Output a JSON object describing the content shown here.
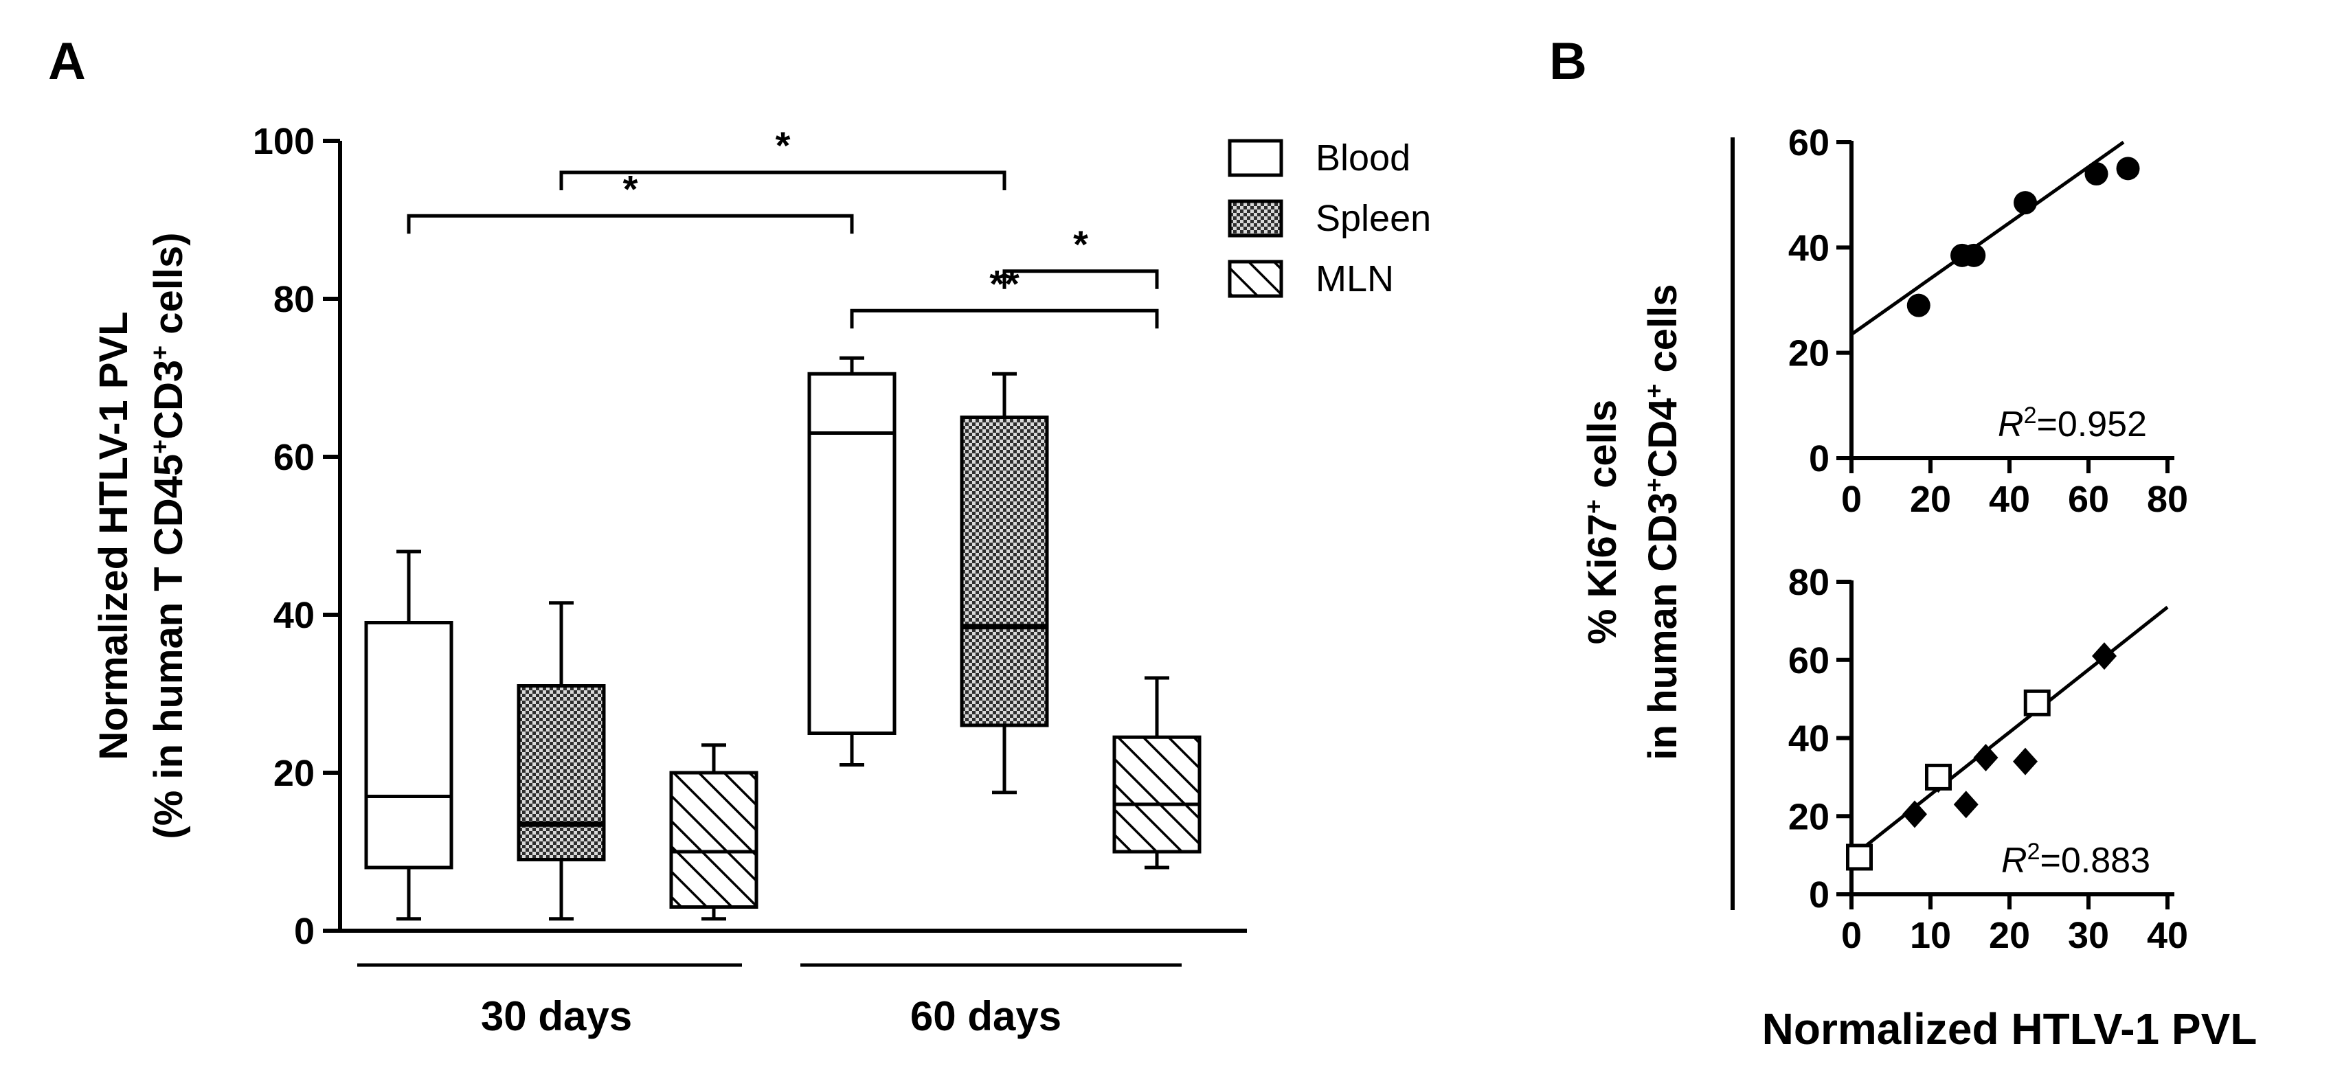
{
  "panel_a_label": "A",
  "panel_b_label": "B",
  "colors": {
    "ink": "#000000",
    "background": "#ffffff",
    "spleen_fill": "#9a9a9a"
  },
  "chart_data": [
    {
      "id": "A",
      "type": "box",
      "ylabel_line1": "Normalized HTLV-1 PVL",
      "ylabel_line2": "(% in human T CD45",
      "ylabel_sup1": "+",
      "ylabel_mid": "CD3",
      "ylabel_sup2": "+",
      "ylabel_end": " cells)",
      "ylim": [
        0,
        100
      ],
      "yticks": [
        "0",
        "20",
        "40",
        "60",
        "80",
        "100"
      ],
      "groups": [
        "30 days",
        "60 days"
      ],
      "legend": [
        {
          "name": "Blood",
          "pattern": "open"
        },
        {
          "name": "Spleen",
          "pattern": "dotted"
        },
        {
          "name": "MLN",
          "pattern": "hatched"
        }
      ],
      "boxes": [
        {
          "group": "30 days",
          "tissue": "Blood",
          "min": 1.5,
          "q1": 8,
          "median": 17,
          "q3": 39,
          "max": 48
        },
        {
          "group": "30 days",
          "tissue": "Spleen",
          "min": 1.5,
          "q1": 9,
          "median": 13.5,
          "q3": 31,
          "max": 41.5
        },
        {
          "group": "30 days",
          "tissue": "MLN",
          "min": 1.5,
          "q1": 3,
          "median": 10,
          "q3": 20,
          "max": 23.5
        },
        {
          "group": "60 days",
          "tissue": "Blood",
          "min": 21,
          "q1": 25,
          "median": 63,
          "q3": 70.5,
          "max": 72.5
        },
        {
          "group": "60 days",
          "tissue": "Spleen",
          "min": 17.5,
          "q1": 26,
          "median": 38.5,
          "q3": 65,
          "max": 70.5
        },
        {
          "group": "60 days",
          "tissue": "MLN",
          "min": 8,
          "q1": 10,
          "median": 16,
          "q3": 24.5,
          "max": 32
        }
      ],
      "significance": [
        {
          "from": "30 days Blood",
          "to": "60 days Blood",
          "y": 90.5,
          "label": "*"
        },
        {
          "from": "30 days Spleen",
          "to": "60 days Spleen",
          "y": 96,
          "label": "*"
        },
        {
          "from": "60 days Blood",
          "to": "60 days MLN",
          "y": 78.5,
          "label": "**"
        },
        {
          "from": "60 days Spleen",
          "to": "60 days MLN",
          "y": 83.5,
          "label": "*"
        }
      ]
    },
    {
      "id": "B-top",
      "type": "scatter",
      "xlim": [
        0,
        80
      ],
      "ylim": [
        0,
        60
      ],
      "xticks": [
        "0",
        "20",
        "40",
        "60",
        "80"
      ],
      "yticks": [
        "0",
        "20",
        "40",
        "60"
      ],
      "r2_prefix": "R",
      "r2_sup": "2",
      "r2_value": "=0.952",
      "fit": {
        "intercept": 23.5,
        "slope": 0.53
      },
      "series": [
        {
          "name": "filled-circle",
          "x": [
            17,
            28,
            31,
            44,
            62,
            70
          ],
          "y": [
            29,
            38.5,
            38.5,
            48.5,
            54,
            55
          ]
        }
      ]
    },
    {
      "id": "B-bottom",
      "type": "scatter",
      "xlim": [
        0,
        40
      ],
      "ylim": [
        0,
        80
      ],
      "xticks": [
        "0",
        "10",
        "20",
        "30",
        "40"
      ],
      "yticks": [
        "0",
        "20",
        "40",
        "60",
        "80"
      ],
      "r2_prefix": "R",
      "r2_sup": "2",
      "r2_value": "=0.883",
      "fit": {
        "intercept": 9.5,
        "slope": 1.6
      },
      "series": [
        {
          "name": "filled-diamond",
          "x": [
            8,
            11,
            14.5,
            17,
            22,
            32
          ],
          "y": [
            20.5,
            29.5,
            23,
            35,
            34,
            61
          ]
        },
        {
          "name": "open-square",
          "x": [
            1,
            11,
            23.5
          ],
          "y": [
            9.5,
            30,
            49
          ]
        }
      ]
    }
  ],
  "panel_b_ylabel_line1_pre": "% Ki67",
  "panel_b_ylabel_line1_sup": "+",
  "panel_b_ylabel_line1_post": " cells",
  "panel_b_ylabel_line2_pre": "in human CD3",
  "panel_b_ylabel_line2_sup1": "+",
  "panel_b_ylabel_line2_mid": "CD4",
  "panel_b_ylabel_line2_sup2": "+",
  "panel_b_ylabel_line2_post": " cells",
  "panel_b_xlabel": "Normalized HTLV-1 PVL"
}
